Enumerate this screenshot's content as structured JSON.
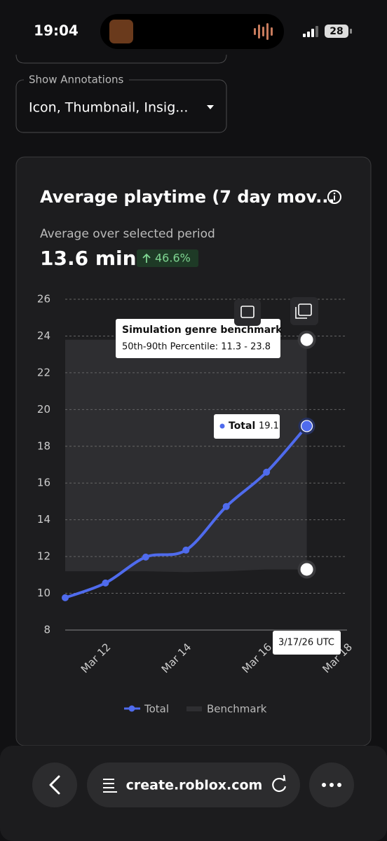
{
  "status_bar": {
    "time": "19:04",
    "battery": "28"
  },
  "annotations": {
    "label": "Show Annotations",
    "value": "Icon, Thumbnail, Insig..."
  },
  "card": {
    "title": "Average playtime (7 day mov...",
    "subtitle": "Average over selected period",
    "value": "13.6 min",
    "change": "46.6%"
  },
  "chart_data": {
    "type": "line",
    "x": [
      11,
      12,
      13,
      14,
      15,
      16,
      17
    ],
    "xlim": [
      11,
      18
    ],
    "xticks": [
      {
        "value": 12,
        "label": "Mar 12"
      },
      {
        "value": 14,
        "label": "Mar 14"
      },
      {
        "value": 16,
        "label": "Mar 16"
      },
      {
        "value": 18,
        "label": "Mar 18"
      }
    ],
    "ylim": [
      8,
      26
    ],
    "yticks": [
      8,
      10,
      12,
      14,
      16,
      18,
      20,
      22,
      24,
      26
    ],
    "grid": true,
    "series": [
      {
        "name": "Total",
        "color": "#4f6bed",
        "values": [
          9.76,
          10.56,
          11.97,
          12.35,
          14.72,
          16.59,
          19.1
        ]
      },
      {
        "name": "Benchmark",
        "color": "#2e2e31",
        "lower": [
          11.2,
          11.2,
          11.2,
          11.15,
          11.2,
          11.3,
          11.3
        ],
        "upper": [
          23.8,
          23.8,
          23.8,
          23.8,
          23.8,
          23.8,
          23.8
        ]
      }
    ],
    "tooltips": {
      "benchmark_title": "Simulation genre benchmark",
      "benchmark_range": "50th-90th Percentile: 11.3 - 23.8",
      "date": "3/17/26 UTC"
    }
  },
  "browser": {
    "url": "create.roblox.com"
  }
}
